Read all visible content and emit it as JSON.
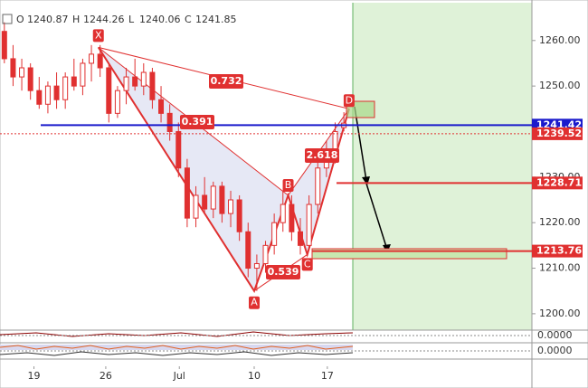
{
  "chart_data": {
    "type": "candlestick",
    "ohlc_legend": [
      {
        "label": "O",
        "value": 1240.87
      },
      {
        "label": "H",
        "value": 1244.26
      },
      {
        "label": "L",
        "value": 1240.06
      },
      {
        "label": "C",
        "value": 1241.85
      }
    ],
    "open": [
      1262,
      1256,
      1252,
      1254,
      1249,
      1246,
      1250,
      1247,
      1252,
      1250,
      1255,
      1257,
      1254,
      1244,
      1249,
      1252,
      1250,
      1253,
      1247,
      1244,
      1240,
      1232,
      1221,
      1226,
      1223,
      1228,
      1222,
      1225,
      1218,
      1210,
      1211,
      1215,
      1220,
      1224,
      1218,
      1215,
      1224,
      1232,
      1236,
      1240.87
    ],
    "high": [
      1264,
      1259,
      1256,
      1255,
      1252,
      1251,
      1253,
      1253,
      1256,
      1256,
      1259,
      1259,
      1255,
      1250,
      1254,
      1256,
      1255,
      1254,
      1250,
      1246,
      1242,
      1234,
      1228,
      1230,
      1229,
      1229,
      1227,
      1226,
      1220,
      1213,
      1216,
      1222,
      1227,
      1226,
      1221,
      1226,
      1234,
      1238,
      1242,
      1244.26
    ],
    "low": [
      1255,
      1250,
      1249,
      1247,
      1245,
      1244,
      1245,
      1245,
      1249,
      1248,
      1251,
      1252,
      1242,
      1243,
      1246,
      1249,
      1248,
      1245,
      1242,
      1238,
      1230,
      1219,
      1219,
      1222,
      1221,
      1220,
      1219,
      1216,
      1208,
      1205,
      1209,
      1213,
      1218,
      1216,
      1213,
      1214,
      1222,
      1230,
      1233,
      1240.06
    ],
    "close": [
      1256,
      1252,
      1254,
      1249,
      1246,
      1250,
      1247,
      1252,
      1250,
      1255,
      1257,
      1254,
      1244,
      1249,
      1252,
      1250,
      1253,
      1247,
      1244,
      1240,
      1232,
      1221,
      1226,
      1223,
      1228,
      1222,
      1225,
      1218,
      1210,
      1211,
      1215,
      1220,
      1224,
      1218,
      1215,
      1224,
      1232,
      1236,
      1240,
      1241.85
    ],
    "color": "#e03030",
    "xlim": [
      -0.5,
      60.6
    ],
    "xticks": [
      {
        "value": 3.4,
        "label": "19"
      },
      {
        "value": 11.65,
        "label": "26"
      },
      {
        "value": 20.1,
        "label": "Jul"
      },
      {
        "value": 28.7,
        "label": "10"
      },
      {
        "value": 37.1,
        "label": "17"
      }
    ],
    "ylim": [
      1196.4,
      1268.3
    ],
    "yticks": [
      {
        "value": 1260,
        "label": "1260.00"
      },
      {
        "value": 1250,
        "label": "1250.00"
      },
      {
        "value": 1230,
        "label": "1230.00"
      },
      {
        "value": 1220,
        "label": "1220.00"
      },
      {
        "value": 1210,
        "label": "1210.00"
      },
      {
        "value": 1200,
        "label": "1200.00"
      }
    ],
    "pattern_points": [
      {
        "label": "X",
        "x": 10.8,
        "price": 1258.5
      },
      {
        "label": "A",
        "x": 28.7,
        "price": 1205
      },
      {
        "label": "B",
        "x": 32.6,
        "price": 1226
      },
      {
        "label": "C",
        "x": 34.8,
        "price": 1213
      },
      {
        "label": "D",
        "x": 39.6,
        "price": 1245
      }
    ],
    "ratios": [
      "0.732",
      "0.391",
      "2.618",
      "0.539"
    ],
    "levels": [
      {
        "value": 1241.42,
        "color": "#1a1acc"
      },
      {
        "value": 1239.52,
        "color": "#e03030"
      },
      {
        "value": 1228.71,
        "color": "#e03030"
      },
      {
        "value": 1213.76,
        "color": "#e03030"
      }
    ],
    "indicator_ticks": [
      {
        "value": 0,
        "label": "0.0000"
      },
      {
        "value": 0,
        "label": "0.0000"
      }
    ]
  }
}
